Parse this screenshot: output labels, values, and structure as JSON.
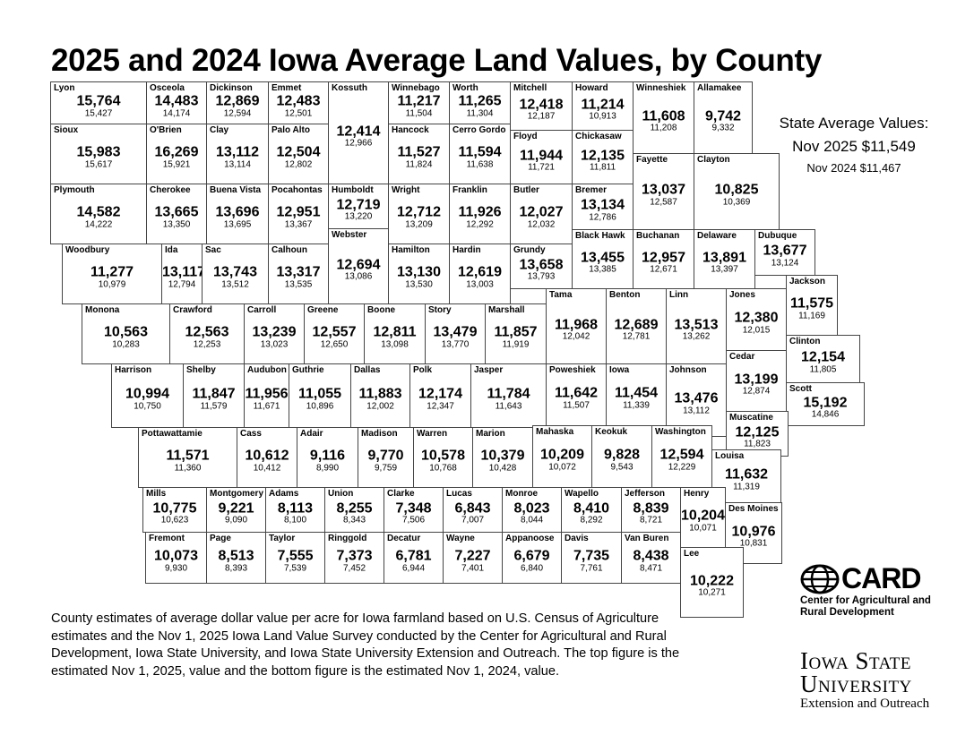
{
  "title": "2025 and 2024 Iowa Average Land Values, by County",
  "state_average": {
    "label": "State Average Values:",
    "nov_2025": "Nov 2025 $11,549",
    "nov_2024": "Nov 2024 $11,467"
  },
  "footnote": "County estimates of average dollar value per acre for Iowa farmland based on U.S. Census of Agriculture estimates and the Nov 1, 2025 Iowa Land Value Survey conducted by the Center for Agricultural and Rural Development, Iowa State University, and Iowa State University Extension and Outreach. The top figure is the estimated Nov 1, 2025, value and the bottom figure is the estimated Nov 1, 2024, value.",
  "logos": {
    "card_word": "CARD",
    "card_sub": "Center for Agricultural and Rural Development",
    "isu_line1": "Iowa State",
    "isu_line2": "University",
    "isu_line3": "Extension and Outreach"
  },
  "counties": [
    {
      "name": "Lyon",
      "v2025": "15,764",
      "v2024": "15,427"
    },
    {
      "name": "Osceola",
      "v2025": "14,483",
      "v2024": "14,174"
    },
    {
      "name": "Dickinson",
      "v2025": "12,869",
      "v2024": "12,594"
    },
    {
      "name": "Emmet",
      "v2025": "12,483",
      "v2024": "12,501"
    },
    {
      "name": "Kossuth",
      "v2025": "12,414",
      "v2024": "12,966"
    },
    {
      "name": "Winnebago",
      "v2025": "11,217",
      "v2024": "11,504"
    },
    {
      "name": "Worth",
      "v2025": "11,265",
      "v2024": "11,304"
    },
    {
      "name": "Mitchell",
      "v2025": "12,418",
      "v2024": "12,187"
    },
    {
      "name": "Howard",
      "v2025": "11,214",
      "v2024": "10,913"
    },
    {
      "name": "Winneshiek",
      "v2025": "11,608",
      "v2024": "11,208"
    },
    {
      "name": "Allamakee",
      "v2025": "9,742",
      "v2024": "9,332"
    },
    {
      "name": "Sioux",
      "v2025": "15,983",
      "v2024": "15,617"
    },
    {
      "name": "O'Brien",
      "v2025": "16,269",
      "v2024": "15,921"
    },
    {
      "name": "Clay",
      "v2025": "13,112",
      "v2024": "13,114"
    },
    {
      "name": "Palo Alto",
      "v2025": "12,504",
      "v2024": "12,802"
    },
    {
      "name": "Hancock",
      "v2025": "11,527",
      "v2024": "11,824"
    },
    {
      "name": "Cerro Gordo",
      "v2025": "11,594",
      "v2024": "11,638"
    },
    {
      "name": "Floyd",
      "v2025": "11,944",
      "v2024": "11,721"
    },
    {
      "name": "Chickasaw",
      "v2025": "12,135",
      "v2024": "11,811"
    },
    {
      "name": "Fayette",
      "v2025": "13,037",
      "v2024": "12,587"
    },
    {
      "name": "Clayton",
      "v2025": "10,825",
      "v2024": "10,369"
    },
    {
      "name": "Plymouth",
      "v2025": "14,582",
      "v2024": "14,222"
    },
    {
      "name": "Cherokee",
      "v2025": "13,665",
      "v2024": "13,350"
    },
    {
      "name": "Buena Vista",
      "v2025": "13,696",
      "v2024": "13,695"
    },
    {
      "name": "Pocahontas",
      "v2025": "12,951",
      "v2024": "13,367"
    },
    {
      "name": "Humboldt",
      "v2025": "12,719",
      "v2024": "13,220"
    },
    {
      "name": "Wright",
      "v2025": "12,712",
      "v2024": "13,209"
    },
    {
      "name": "Franklin",
      "v2025": "11,926",
      "v2024": "12,292"
    },
    {
      "name": "Butler",
      "v2025": "12,027",
      "v2024": "12,032"
    },
    {
      "name": "Bremer",
      "v2025": "13,134",
      "v2024": "12,786"
    },
    {
      "name": "Webster",
      "v2025": "12,694",
      "v2024": "13,086"
    },
    {
      "name": "Black Hawk",
      "v2025": "13,455",
      "v2024": "13,385"
    },
    {
      "name": "Buchanan",
      "v2025": "12,957",
      "v2024": "12,671"
    },
    {
      "name": "Delaware",
      "v2025": "13,891",
      "v2024": "13,397"
    },
    {
      "name": "Dubuque",
      "v2025": "13,677",
      "v2024": "13,124"
    },
    {
      "name": "Woodbury",
      "v2025": "11,277",
      "v2024": "10,979"
    },
    {
      "name": "Ida",
      "v2025": "13,117",
      "v2024": "12,794"
    },
    {
      "name": "Sac",
      "v2025": "13,743",
      "v2024": "13,512"
    },
    {
      "name": "Calhoun",
      "v2025": "13,317",
      "v2024": "13,535"
    },
    {
      "name": "Hamilton",
      "v2025": "13,130",
      "v2024": "13,530"
    },
    {
      "name": "Hardin",
      "v2025": "12,619",
      "v2024": "13,003"
    },
    {
      "name": "Grundy",
      "v2025": "13,658",
      "v2024": "13,793"
    },
    {
      "name": "Monona",
      "v2025": "10,563",
      "v2024": "10,283"
    },
    {
      "name": "Crawford",
      "v2025": "12,563",
      "v2024": "12,253"
    },
    {
      "name": "Carroll",
      "v2025": "13,239",
      "v2024": "13,023"
    },
    {
      "name": "Greene",
      "v2025": "12,557",
      "v2024": "12,650"
    },
    {
      "name": "Boone",
      "v2025": "12,811",
      "v2024": "13,098"
    },
    {
      "name": "Story",
      "v2025": "13,479",
      "v2024": "13,770"
    },
    {
      "name": "Marshall",
      "v2025": "11,857",
      "v2024": "11,919"
    },
    {
      "name": "Tama",
      "v2025": "11,968",
      "v2024": "12,042"
    },
    {
      "name": "Benton",
      "v2025": "12,689",
      "v2024": "12,781"
    },
    {
      "name": "Linn",
      "v2025": "13,513",
      "v2024": "13,262"
    },
    {
      "name": "Jones",
      "v2025": "12,380",
      "v2024": "12,015"
    },
    {
      "name": "Jackson",
      "v2025": "11,575",
      "v2024": "11,169"
    },
    {
      "name": "Clinton",
      "v2025": "12,154",
      "v2024": "11,805"
    },
    {
      "name": "Cedar",
      "v2025": "13,199",
      "v2024": "12,874"
    },
    {
      "name": "Harrison",
      "v2025": "10,994",
      "v2024": "10,750"
    },
    {
      "name": "Shelby",
      "v2025": "11,847",
      "v2024": "11,579"
    },
    {
      "name": "Audubon",
      "v2025": "11,956",
      "v2024": "11,671"
    },
    {
      "name": "Guthrie",
      "v2025": "11,055",
      "v2024": "10,896"
    },
    {
      "name": "Dallas",
      "v2025": "11,883",
      "v2024": "12,002"
    },
    {
      "name": "Polk",
      "v2025": "12,174",
      "v2024": "12,347"
    },
    {
      "name": "Jasper",
      "v2025": "11,784",
      "v2024": "11,643"
    },
    {
      "name": "Poweshiek",
      "v2025": "11,642",
      "v2024": "11,507"
    },
    {
      "name": "Iowa",
      "v2025": "11,454",
      "v2024": "11,339"
    },
    {
      "name": "Johnson",
      "v2025": "13,476",
      "v2024": "13,112"
    },
    {
      "name": "Scott",
      "v2025": "15,192",
      "v2024": "14,846"
    },
    {
      "name": "Muscatine",
      "v2025": "12,125",
      "v2024": "11,823"
    },
    {
      "name": "Pottawattamie",
      "v2025": "11,571",
      "v2024": "11,360"
    },
    {
      "name": "Cass",
      "v2025": "10,612",
      "v2024": "10,412"
    },
    {
      "name": "Adair",
      "v2025": "9,116",
      "v2024": "8,990"
    },
    {
      "name": "Madison",
      "v2025": "9,770",
      "v2024": "9,759"
    },
    {
      "name": "Warren",
      "v2025": "10,578",
      "v2024": "10,768"
    },
    {
      "name": "Marion",
      "v2025": "10,379",
      "v2024": "10,428"
    },
    {
      "name": "Mahaska",
      "v2025": "10,209",
      "v2024": "10,072"
    },
    {
      "name": "Keokuk",
      "v2025": "9,828",
      "v2024": "9,543"
    },
    {
      "name": "Washington",
      "v2025": "12,594",
      "v2024": "12,229"
    },
    {
      "name": "Louisa",
      "v2025": "11,632",
      "v2024": "11,319"
    },
    {
      "name": "Mills",
      "v2025": "10,775",
      "v2024": "10,623"
    },
    {
      "name": "Montgomery",
      "v2025": "9,221",
      "v2024": "9,090"
    },
    {
      "name": "Adams",
      "v2025": "8,113",
      "v2024": "8,100"
    },
    {
      "name": "Union",
      "v2025": "8,255",
      "v2024": "8,343"
    },
    {
      "name": "Clarke",
      "v2025": "7,348",
      "v2024": "7,506"
    },
    {
      "name": "Lucas",
      "v2025": "6,843",
      "v2024": "7,007"
    },
    {
      "name": "Monroe",
      "v2025": "8,023",
      "v2024": "8,044"
    },
    {
      "name": "Wapello",
      "v2025": "8,410",
      "v2024": "8,292"
    },
    {
      "name": "Jefferson",
      "v2025": "8,839",
      "v2024": "8,721"
    },
    {
      "name": "Henry",
      "v2025": "10,204",
      "v2024": "10,071"
    },
    {
      "name": "Des Moines",
      "v2025": "10,976",
      "v2024": "10,831"
    },
    {
      "name": "Fremont",
      "v2025": "10,073",
      "v2024": "9,930"
    },
    {
      "name": "Page",
      "v2025": "8,513",
      "v2024": "8,393"
    },
    {
      "name": "Taylor",
      "v2025": "7,555",
      "v2024": "7,539"
    },
    {
      "name": "Ringgold",
      "v2025": "7,373",
      "v2024": "7,452"
    },
    {
      "name": "Decatur",
      "v2025": "6,781",
      "v2024": "6,944"
    },
    {
      "name": "Wayne",
      "v2025": "7,227",
      "v2024": "7,401"
    },
    {
      "name": "Appanoose",
      "v2025": "6,679",
      "v2024": "6,840"
    },
    {
      "name": "Davis",
      "v2025": "7,735",
      "v2024": "7,761"
    },
    {
      "name": "Van Buren",
      "v2025": "8,438",
      "v2024": "8,471"
    },
    {
      "name": "Lee",
      "v2025": "10,222",
      "v2024": "10,271"
    }
  ]
}
